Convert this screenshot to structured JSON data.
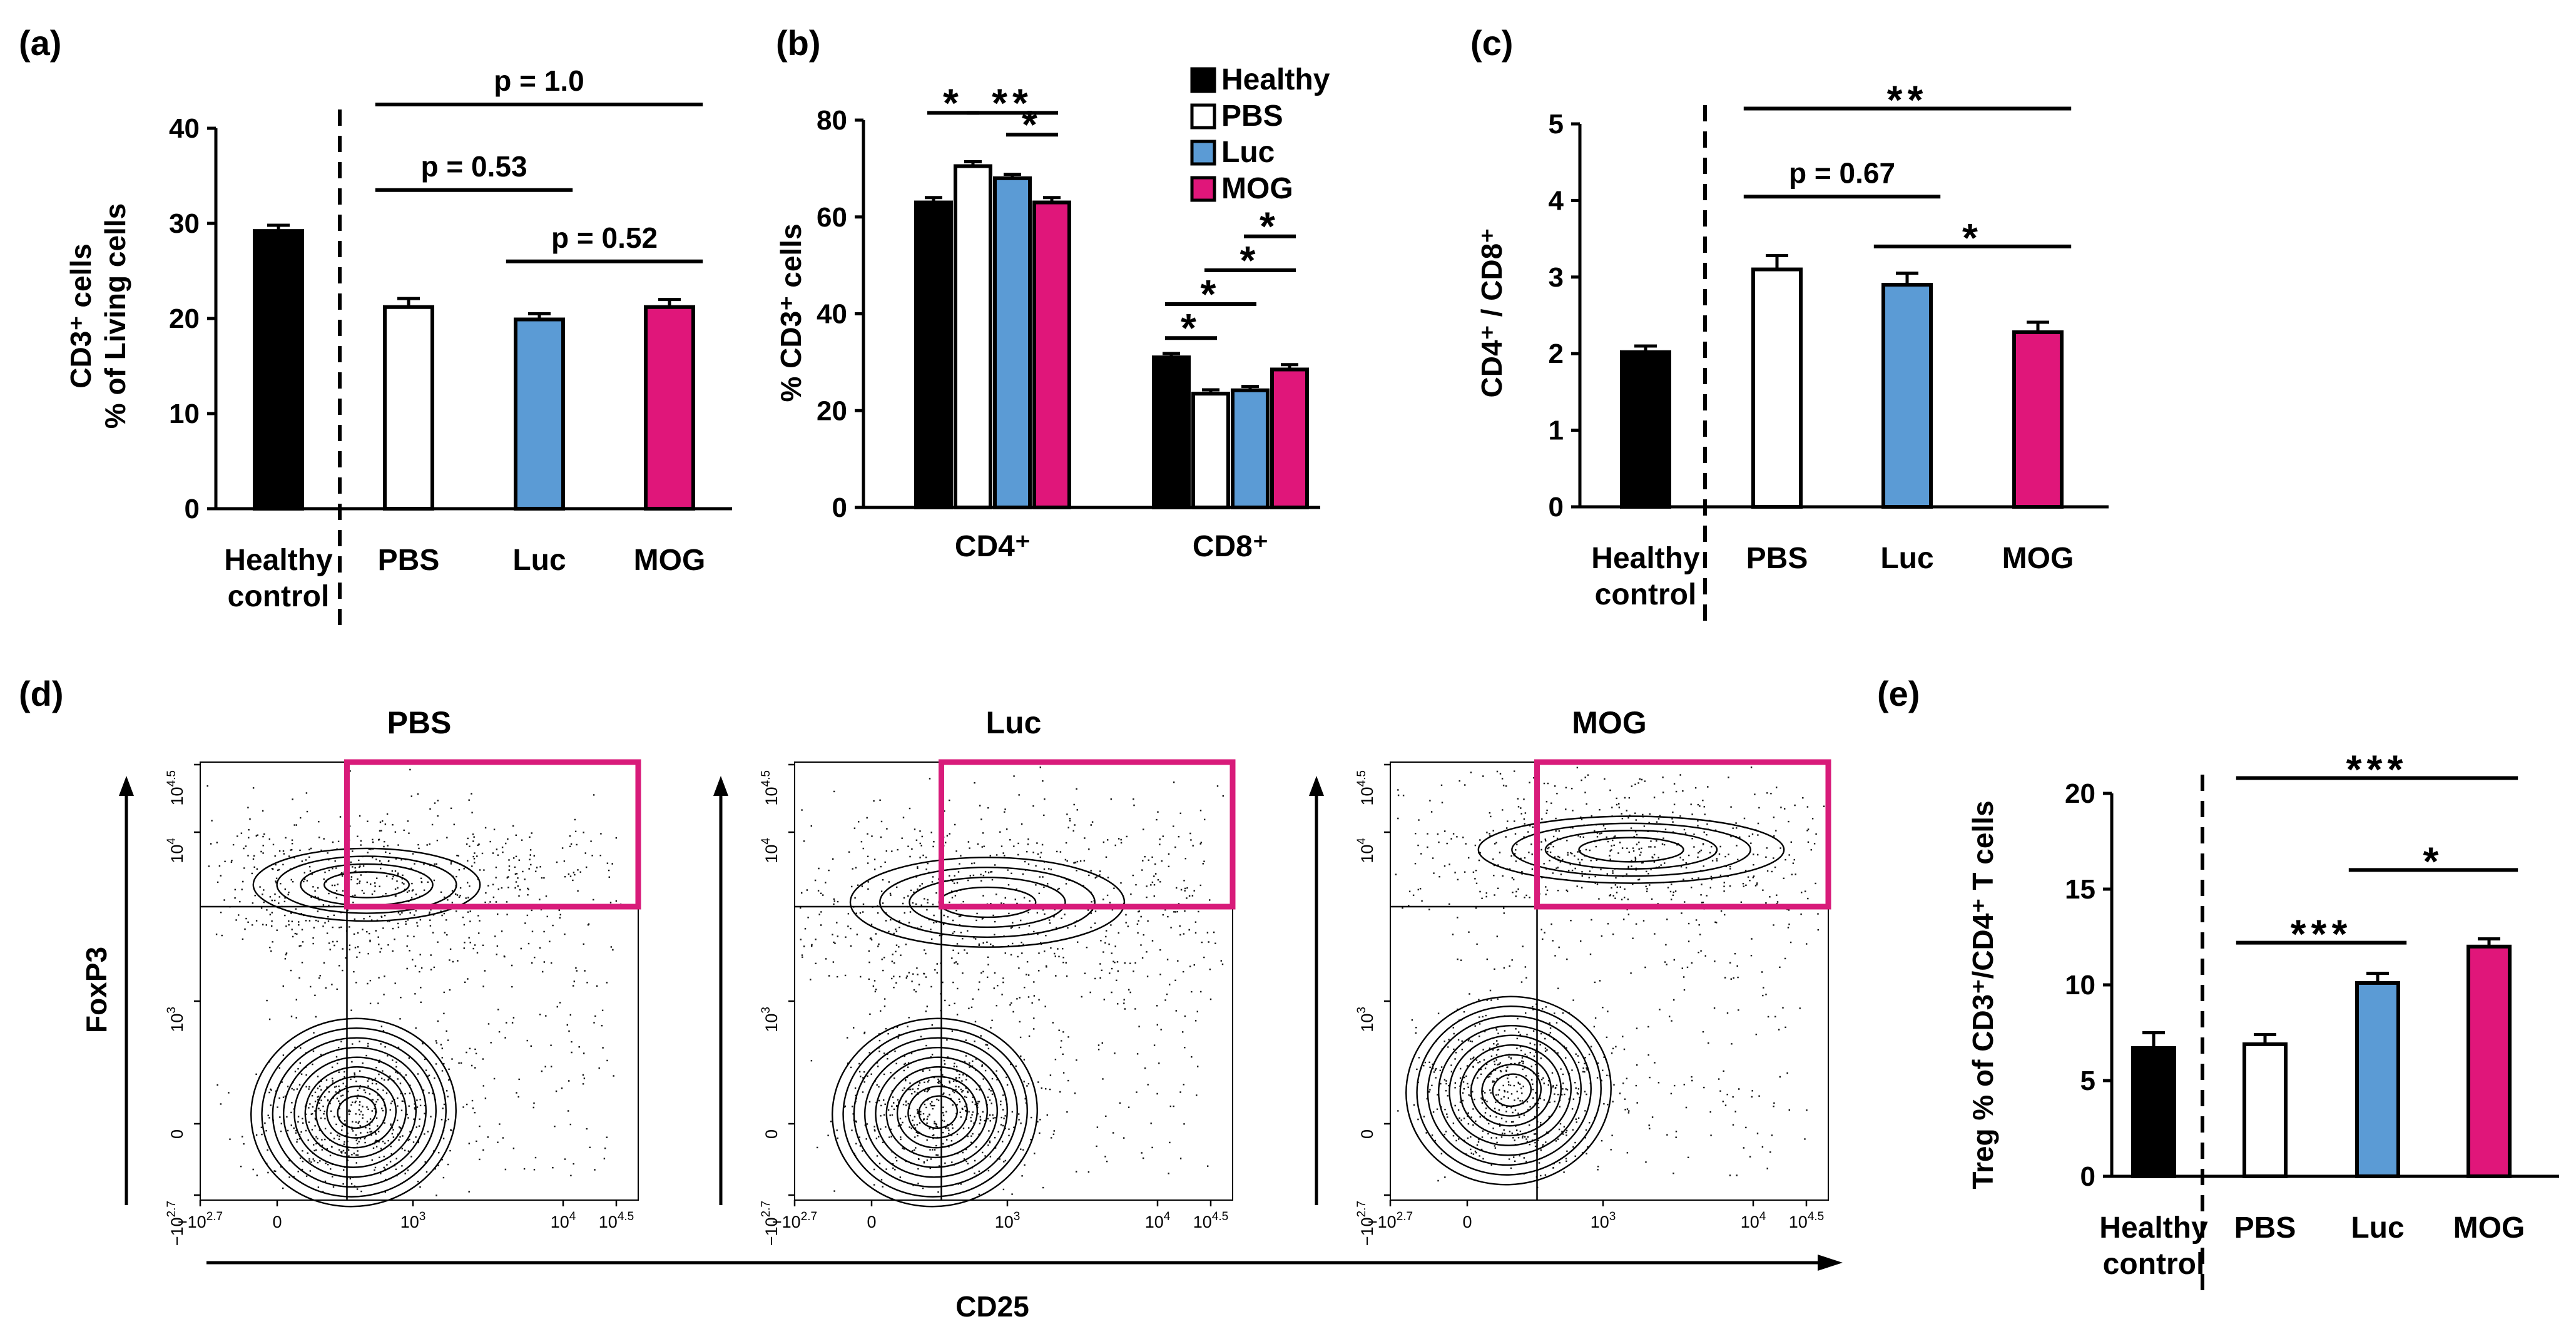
{
  "colors": {
    "black": "#000000",
    "white": "#ffffff",
    "blue": "#5b9bd5",
    "magenta": "#e0167a",
    "gate": "#d81b7a"
  },
  "panels": {
    "a": {
      "letter": "(a)"
    },
    "b": {
      "letter": "(b)"
    },
    "c": {
      "letter": "(c)"
    },
    "d": {
      "letter": "(d)"
    },
    "e": {
      "letter": "(e)"
    }
  },
  "chart_data": [
    {
      "id": "a",
      "type": "bar",
      "ylabel_lines": [
        "CD3⁺ cells",
        "% of Living cells"
      ],
      "ylim": [
        0,
        40
      ],
      "yticks": [
        0,
        10,
        20,
        30,
        40
      ],
      "categories": [
        {
          "line1": "Healthy",
          "line2": "control",
          "color": "black"
        },
        {
          "line1": "PBS",
          "color": "black"
        },
        {
          "line1": "Luc",
          "color": "blue"
        },
        {
          "line1": "MOG",
          "color": "magenta"
        }
      ],
      "values": [
        29.2,
        21.2,
        19.9,
        21.2
      ],
      "errors": [
        0.6,
        0.9,
        0.6,
        0.8
      ],
      "fills": [
        "black",
        "white",
        "blue",
        "magenta"
      ],
      "annotations": [
        {
          "from": 1,
          "to": 3,
          "text": "p = 1.0",
          "y": 42.5
        },
        {
          "from": 1,
          "to": 2,
          "text": "p = 0.53",
          "y": 33.5
        },
        {
          "from": 2,
          "to": 3,
          "text": "p = 0.52",
          "y": 26.0
        }
      ]
    },
    {
      "id": "b",
      "type": "bar",
      "ylabel": "% CD3⁺ cells",
      "ylim": [
        0,
        80
      ],
      "yticks": [
        0,
        20,
        40,
        60,
        80
      ],
      "groups": [
        "CD4⁺",
        "CD8⁺"
      ],
      "series": [
        {
          "name": "Healthy",
          "fill": "black",
          "values": [
            63.0,
            31.0
          ],
          "errors": [
            1.0,
            0.8
          ]
        },
        {
          "name": "PBS",
          "fill": "white",
          "values": [
            70.5,
            23.5
          ],
          "errors": [
            0.9,
            0.8
          ]
        },
        {
          "name": "Luc",
          "fill": "blue",
          "values": [
            68.0,
            24.2
          ],
          "errors": [
            0.8,
            0.8
          ]
        },
        {
          "name": "MOG",
          "fill": "magenta",
          "values": [
            63.0,
            28.5
          ],
          "errors": [
            1.0,
            1.0
          ]
        }
      ],
      "annotations": [
        {
          "group": 0,
          "from": 0,
          "to": 1,
          "text": "*",
          "y": 81.5
        },
        {
          "group": 0,
          "from": 1,
          "to": 3,
          "text": "**",
          "y": 81.5
        },
        {
          "group": 0,
          "from": 2,
          "to": 3,
          "text": "*",
          "y": 77.0
        },
        {
          "group": 1,
          "from": 0,
          "to": 1,
          "text": "*",
          "y": 35.0
        },
        {
          "group": 1,
          "from": 0,
          "to": 2,
          "text": "*",
          "y": 42.0
        },
        {
          "group": 1,
          "from": 1,
          "to": 3,
          "text": "*",
          "y": 49.0
        },
        {
          "group": 1,
          "from": 2,
          "to": 3,
          "text": "*",
          "y": 56.0
        }
      ]
    },
    {
      "id": "c",
      "type": "bar",
      "ylabel": "CD4⁺ / CD8⁺",
      "ylim": [
        0,
        5
      ],
      "yticks": [
        0,
        1,
        2,
        3,
        4,
        5
      ],
      "categories": [
        {
          "line1": "Healthy",
          "line2": "control",
          "color": "black"
        },
        {
          "line1": "PBS",
          "color": "black"
        },
        {
          "line1": "Luc",
          "color": "blue"
        },
        {
          "line1": "MOG",
          "color": "magenta"
        }
      ],
      "values": [
        2.02,
        3.1,
        2.9,
        2.28
      ],
      "errors": [
        0.08,
        0.18,
        0.15,
        0.13
      ],
      "fills": [
        "black",
        "white",
        "blue",
        "magenta"
      ],
      "annotations": [
        {
          "from": 1,
          "to": 3,
          "text": "**",
          "y": 5.2
        },
        {
          "from": 1,
          "to": 2,
          "text": "p = 0.67",
          "y": 4.05
        },
        {
          "from": 2,
          "to": 3,
          "text": "*",
          "y": 3.4
        }
      ]
    },
    {
      "id": "e",
      "type": "bar",
      "ylabel": "Treg % of CD3⁺/CD4⁺ T cells",
      "ylim": [
        0,
        20
      ],
      "yticks": [
        0,
        5,
        10,
        15,
        20
      ],
      "categories": [
        {
          "line1": "Healthy",
          "line2": "control",
          "color": "black"
        },
        {
          "line1": "PBS",
          "color": "black"
        },
        {
          "line1": "Luc",
          "color": "blue"
        },
        {
          "line1": "MOG",
          "color": "magenta"
        }
      ],
      "values": [
        6.7,
        6.9,
        10.1,
        12.0
      ],
      "errors": [
        0.8,
        0.5,
        0.5,
        0.4
      ],
      "fills": [
        "black",
        "white",
        "blue",
        "magenta"
      ],
      "annotations": [
        {
          "from": 1,
          "to": 3,
          "text": "***",
          "y": 20.8
        },
        {
          "from": 2,
          "to": 3,
          "text": "*",
          "y": 16.0
        },
        {
          "from": 1,
          "to": 2,
          "text": "***",
          "y": 12.2
        }
      ]
    },
    {
      "id": "d",
      "type": "scatter",
      "titles": [
        "PBS",
        "Luc",
        "MOG"
      ],
      "ylabel": "FoxP3",
      "xlabel": "CD25",
      "xticks": [
        {
          "base": "−10",
          "sup": "2.7"
        },
        {
          "base": "0"
        },
        {
          "base": "10",
          "sup": "3"
        },
        {
          "base": "10",
          "sup": "4"
        },
        {
          "base": "10",
          "sup": "4.5"
        }
      ],
      "yticks": [
        {
          "base": "10",
          "sup": "4.5"
        },
        {
          "base": "10",
          "sup": "4"
        },
        {
          "base": "10",
          "sup": "3"
        },
        {
          "base": "0"
        },
        {
          "base": "−10",
          "sup": "2.7"
        }
      ]
    }
  ]
}
